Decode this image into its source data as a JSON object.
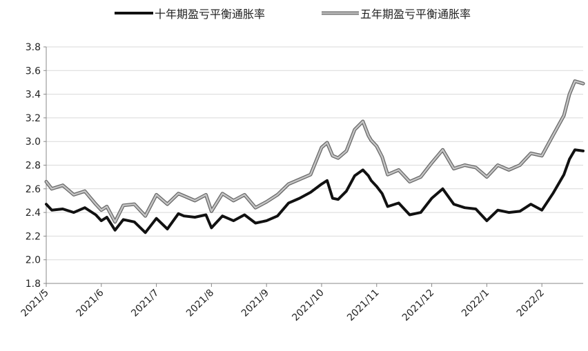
{
  "chart_data": {
    "type": "line",
    "title": "",
    "xlabel": "",
    "ylabel": "",
    "ylim": [
      1.8,
      3.8
    ],
    "yticks": [
      "1.8",
      "2.0",
      "2.2",
      "2.4",
      "2.6",
      "2.8",
      "3.0",
      "3.2",
      "3.4",
      "3.6",
      "3.8"
    ],
    "xticks": [
      "2021/5",
      "2021/6",
      "2021/7",
      "2021/8",
      "2021/9",
      "2021/10",
      "2021/11",
      "2021/12",
      "2022/1",
      "2022/2"
    ],
    "grid": true,
    "legend_position": "top",
    "x_units": "months since 2021/5",
    "series": [
      {
        "name": "十年期盈亏平衡通胀率",
        "color": "#111111",
        "x": [
          0,
          0.1,
          0.3,
          0.5,
          0.7,
          0.9,
          1.0,
          1.1,
          1.25,
          1.4,
          1.6,
          1.8,
          2.0,
          2.2,
          2.4,
          2.5,
          2.7,
          2.9,
          3.0,
          3.2,
          3.4,
          3.6,
          3.8,
          4.0,
          4.2,
          4.4,
          4.6,
          4.8,
          5.0,
          5.1,
          5.2,
          5.3,
          5.45,
          5.6,
          5.75,
          5.85,
          5.9,
          6.0,
          6.1,
          6.2,
          6.4,
          6.6,
          6.8,
          7.0,
          7.2,
          7.4,
          7.6,
          7.8,
          8.0,
          8.2,
          8.4,
          8.6,
          8.8,
          9.0,
          9.2,
          9.4,
          9.5,
          9.6,
          9.75
        ],
        "values": [
          2.47,
          2.42,
          2.43,
          2.4,
          2.44,
          2.38,
          2.33,
          2.36,
          2.25,
          2.34,
          2.32,
          2.23,
          2.35,
          2.26,
          2.39,
          2.37,
          2.36,
          2.38,
          2.27,
          2.37,
          2.33,
          2.38,
          2.31,
          2.33,
          2.37,
          2.48,
          2.52,
          2.57,
          2.64,
          2.67,
          2.52,
          2.51,
          2.58,
          2.71,
          2.76,
          2.71,
          2.67,
          2.62,
          2.56,
          2.45,
          2.48,
          2.38,
          2.4,
          2.52,
          2.6,
          2.47,
          2.44,
          2.43,
          2.33,
          2.42,
          2.4,
          2.41,
          2.47,
          2.42,
          2.56,
          2.72,
          2.85,
          2.93,
          2.92
        ]
      },
      {
        "name": "五年期盈亏平衡通胀率",
        "color": "#a6a6a6",
        "x": [
          0,
          0.1,
          0.3,
          0.5,
          0.7,
          0.9,
          1.0,
          1.1,
          1.25,
          1.4,
          1.6,
          1.8,
          2.0,
          2.2,
          2.4,
          2.5,
          2.7,
          2.9,
          3.0,
          3.2,
          3.4,
          3.6,
          3.8,
          4.0,
          4.2,
          4.4,
          4.6,
          4.8,
          5.0,
          5.1,
          5.2,
          5.3,
          5.45,
          5.6,
          5.75,
          5.85,
          5.9,
          6.0,
          6.1,
          6.2,
          6.4,
          6.6,
          6.8,
          7.0,
          7.2,
          7.4,
          7.6,
          7.8,
          8.0,
          8.2,
          8.4,
          8.6,
          8.8,
          9.0,
          9.2,
          9.4,
          9.5,
          9.6,
          9.75
        ],
        "values": [
          2.66,
          2.6,
          2.63,
          2.55,
          2.58,
          2.47,
          2.42,
          2.45,
          2.32,
          2.46,
          2.47,
          2.37,
          2.55,
          2.47,
          2.56,
          2.54,
          2.5,
          2.55,
          2.41,
          2.56,
          2.5,
          2.55,
          2.44,
          2.49,
          2.55,
          2.64,
          2.68,
          2.72,
          2.95,
          2.99,
          2.88,
          2.86,
          2.92,
          3.1,
          3.17,
          3.05,
          3.01,
          2.96,
          2.87,
          2.72,
          2.76,
          2.66,
          2.7,
          2.82,
          2.93,
          2.77,
          2.8,
          2.78,
          2.7,
          2.8,
          2.76,
          2.8,
          2.9,
          2.88,
          3.05,
          3.22,
          3.4,
          3.51,
          3.49
        ]
      }
    ]
  }
}
